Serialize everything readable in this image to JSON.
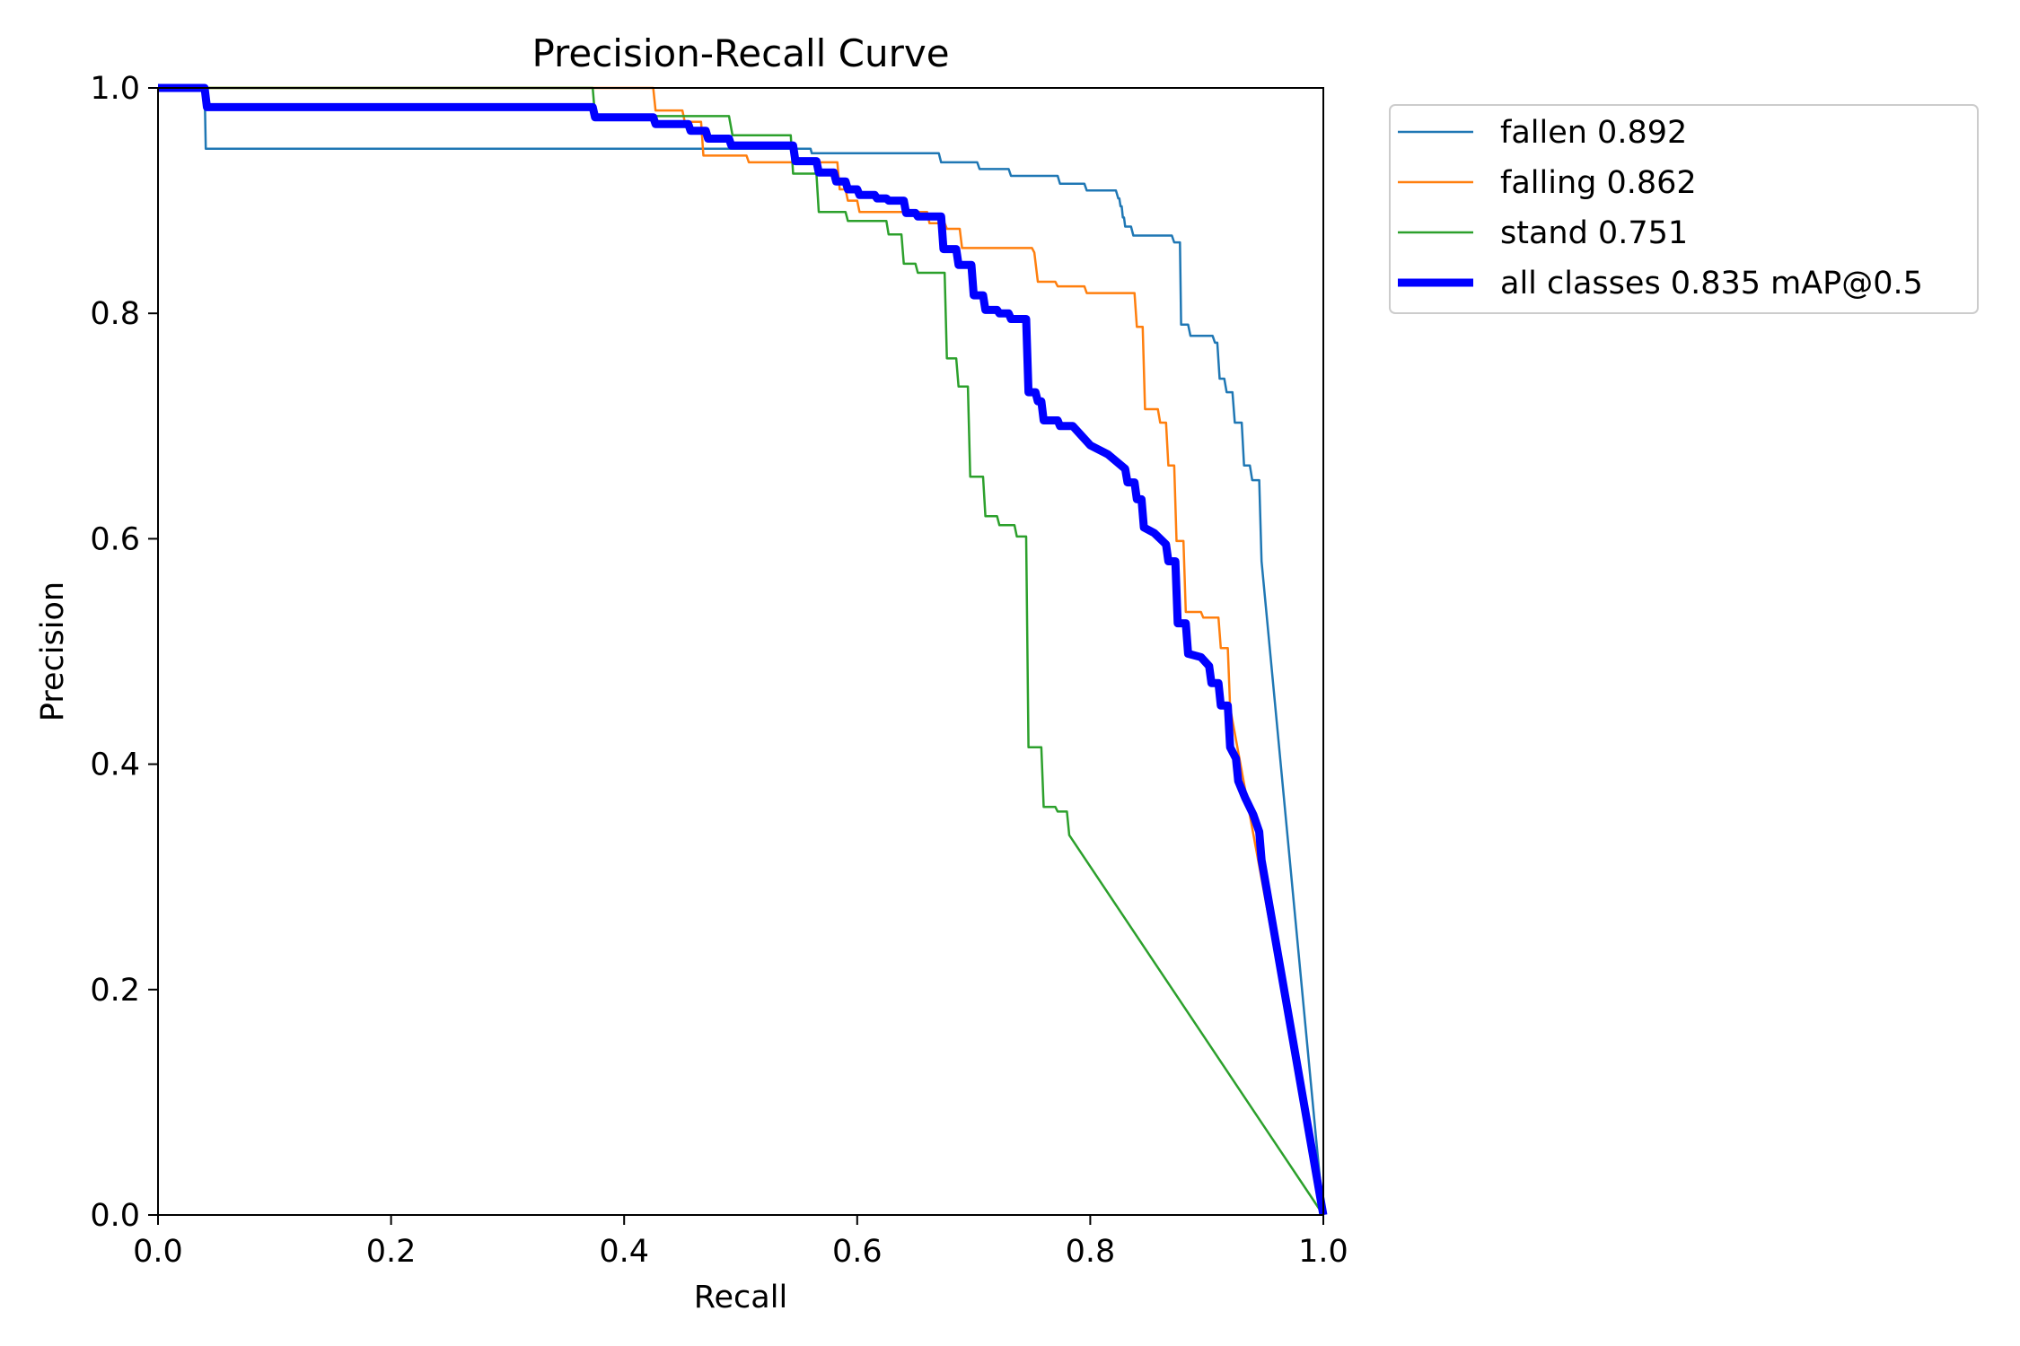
{
  "chart_data": {
    "type": "line",
    "title": "Precision-Recall Curve",
    "xlabel": "Recall",
    "ylabel": "Precision",
    "xlim": [
      0,
      1
    ],
    "ylim": [
      0,
      1
    ],
    "xticks": [
      "0.0",
      "0.2",
      "0.4",
      "0.6",
      "0.8",
      "1.0"
    ],
    "yticks": [
      "0.0",
      "0.2",
      "0.4",
      "0.6",
      "0.8",
      "1.0"
    ],
    "grid": false,
    "legend_position": "outside-top-right",
    "series": [
      {
        "name": "fallen 0.892",
        "color": "#1f77b4",
        "weight": "thin",
        "points": [
          [
            0,
            1
          ],
          [
            0.04,
            1
          ],
          [
            0.041,
            0.946
          ],
          [
            0.56,
            0.946
          ],
          [
            0.561,
            0.942
          ],
          [
            0.67,
            0.942
          ],
          [
            0.672,
            0.934
          ],
          [
            0.703,
            0.934
          ],
          [
            0.705,
            0.928
          ],
          [
            0.73,
            0.928
          ],
          [
            0.732,
            0.922
          ],
          [
            0.772,
            0.922
          ],
          [
            0.774,
            0.915
          ],
          [
            0.795,
            0.915
          ],
          [
            0.797,
            0.909
          ],
          [
            0.822,
            0.909
          ],
          [
            0.824,
            0.902
          ],
          [
            0.825,
            0.902
          ],
          [
            0.826,
            0.895
          ],
          [
            0.827,
            0.895
          ],
          [
            0.828,
            0.885
          ],
          [
            0.829,
            0.885
          ],
          [
            0.83,
            0.877
          ],
          [
            0.835,
            0.877
          ],
          [
            0.837,
            0.869
          ],
          [
            0.87,
            0.869
          ],
          [
            0.872,
            0.863
          ],
          [
            0.877,
            0.863
          ],
          [
            0.878,
            0.79
          ],
          [
            0.884,
            0.79
          ],
          [
            0.886,
            0.78
          ],
          [
            0.905,
            0.78
          ],
          [
            0.907,
            0.774
          ],
          [
            0.909,
            0.774
          ],
          [
            0.911,
            0.742
          ],
          [
            0.915,
            0.742
          ],
          [
            0.917,
            0.73
          ],
          [
            0.922,
            0.73
          ],
          [
            0.924,
            0.703
          ],
          [
            0.93,
            0.703
          ],
          [
            0.932,
            0.665
          ],
          [
            0.937,
            0.665
          ],
          [
            0.939,
            0.652
          ],
          [
            0.945,
            0.652
          ],
          [
            0.947,
            0.58
          ],
          [
            1.0,
            0.0
          ]
        ]
      },
      {
        "name": "falling 0.862",
        "color": "#ff7f0e",
        "weight": "thin",
        "points": [
          [
            0,
            1
          ],
          [
            0.425,
            1
          ],
          [
            0.427,
            0.98
          ],
          [
            0.45,
            0.98
          ],
          [
            0.452,
            0.97
          ],
          [
            0.466,
            0.97
          ],
          [
            0.468,
            0.94
          ],
          [
            0.505,
            0.94
          ],
          [
            0.507,
            0.934
          ],
          [
            0.583,
            0.934
          ],
          [
            0.585,
            0.91
          ],
          [
            0.59,
            0.91
          ],
          [
            0.592,
            0.9
          ],
          [
            0.6,
            0.9
          ],
          [
            0.602,
            0.89
          ],
          [
            0.66,
            0.89
          ],
          [
            0.662,
            0.88
          ],
          [
            0.675,
            0.88
          ],
          [
            0.677,
            0.875
          ],
          [
            0.688,
            0.875
          ],
          [
            0.69,
            0.858
          ],
          [
            0.75,
            0.858
          ],
          [
            0.752,
            0.854
          ],
          [
            0.755,
            0.828
          ],
          [
            0.77,
            0.828
          ],
          [
            0.772,
            0.824
          ],
          [
            0.795,
            0.824
          ],
          [
            0.797,
            0.818
          ],
          [
            0.838,
            0.818
          ],
          [
            0.84,
            0.788
          ],
          [
            0.845,
            0.788
          ],
          [
            0.847,
            0.715
          ],
          [
            0.858,
            0.715
          ],
          [
            0.86,
            0.703
          ],
          [
            0.865,
            0.703
          ],
          [
            0.867,
            0.665
          ],
          [
            0.872,
            0.665
          ],
          [
            0.874,
            0.598
          ],
          [
            0.88,
            0.598
          ],
          [
            0.882,
            0.535
          ],
          [
            0.895,
            0.535
          ],
          [
            0.897,
            0.53
          ],
          [
            0.91,
            0.53
          ],
          [
            0.912,
            0.503
          ],
          [
            0.918,
            0.503
          ],
          [
            0.92,
            0.45
          ],
          [
            1.0,
            0.0
          ]
        ]
      },
      {
        "name": "stand 0.751",
        "color": "#2ca02c",
        "weight": "thin",
        "points": [
          [
            0,
            1
          ],
          [
            0.373,
            1
          ],
          [
            0.375,
            0.975
          ],
          [
            0.49,
            0.975
          ],
          [
            0.493,
            0.958
          ],
          [
            0.543,
            0.958
          ],
          [
            0.545,
            0.924
          ],
          [
            0.565,
            0.924
          ],
          [
            0.567,
            0.89
          ],
          [
            0.59,
            0.89
          ],
          [
            0.592,
            0.882
          ],
          [
            0.625,
            0.882
          ],
          [
            0.627,
            0.87
          ],
          [
            0.638,
            0.87
          ],
          [
            0.64,
            0.844
          ],
          [
            0.65,
            0.844
          ],
          [
            0.652,
            0.836
          ],
          [
            0.675,
            0.836
          ],
          [
            0.677,
            0.76
          ],
          [
            0.685,
            0.76
          ],
          [
            0.687,
            0.735
          ],
          [
            0.695,
            0.735
          ],
          [
            0.697,
            0.655
          ],
          [
            0.708,
            0.655
          ],
          [
            0.71,
            0.62
          ],
          [
            0.72,
            0.62
          ],
          [
            0.722,
            0.612
          ],
          [
            0.735,
            0.612
          ],
          [
            0.737,
            0.602
          ],
          [
            0.745,
            0.602
          ],
          [
            0.747,
            0.415
          ],
          [
            0.758,
            0.415
          ],
          [
            0.76,
            0.362
          ],
          [
            0.77,
            0.362
          ],
          [
            0.772,
            0.358
          ],
          [
            0.78,
            0.358
          ],
          [
            0.782,
            0.337
          ],
          [
            1.0,
            0.0
          ]
        ]
      },
      {
        "name": "all classes 0.835 mAP@0.5",
        "color": "#0000ff",
        "weight": "thick",
        "points": [
          [
            0,
            1
          ],
          [
            0.04,
            1
          ],
          [
            0.042,
            0.983
          ],
          [
            0.373,
            0.983
          ],
          [
            0.375,
            0.974
          ],
          [
            0.425,
            0.974
          ],
          [
            0.427,
            0.968
          ],
          [
            0.455,
            0.968
          ],
          [
            0.457,
            0.962
          ],
          [
            0.47,
            0.962
          ],
          [
            0.472,
            0.955
          ],
          [
            0.49,
            0.955
          ],
          [
            0.492,
            0.949
          ],
          [
            0.545,
            0.949
          ],
          [
            0.547,
            0.935
          ],
          [
            0.565,
            0.935
          ],
          [
            0.567,
            0.925
          ],
          [
            0.58,
            0.925
          ],
          [
            0.582,
            0.917
          ],
          [
            0.59,
            0.917
          ],
          [
            0.592,
            0.91
          ],
          [
            0.6,
            0.91
          ],
          [
            0.602,
            0.905
          ],
          [
            0.615,
            0.905
          ],
          [
            0.617,
            0.902
          ],
          [
            0.625,
            0.902
          ],
          [
            0.627,
            0.9
          ],
          [
            0.64,
            0.9
          ],
          [
            0.642,
            0.889
          ],
          [
            0.65,
            0.889
          ],
          [
            0.652,
            0.886
          ],
          [
            0.672,
            0.886
          ],
          [
            0.674,
            0.857
          ],
          [
            0.685,
            0.857
          ],
          [
            0.687,
            0.843
          ],
          [
            0.698,
            0.843
          ],
          [
            0.7,
            0.816
          ],
          [
            0.708,
            0.816
          ],
          [
            0.71,
            0.803
          ],
          [
            0.72,
            0.803
          ],
          [
            0.722,
            0.8
          ],
          [
            0.73,
            0.8
          ],
          [
            0.732,
            0.795
          ],
          [
            0.745,
            0.795
          ],
          [
            0.747,
            0.73
          ],
          [
            0.753,
            0.73
          ],
          [
            0.755,
            0.722
          ],
          [
            0.758,
            0.722
          ],
          [
            0.76,
            0.705
          ],
          [
            0.772,
            0.705
          ],
          [
            0.774,
            0.7
          ],
          [
            0.785,
            0.7
          ],
          [
            0.8,
            0.683
          ],
          [
            0.815,
            0.675
          ],
          [
            0.83,
            0.662
          ],
          [
            0.832,
            0.65
          ],
          [
            0.838,
            0.65
          ],
          [
            0.84,
            0.635
          ],
          [
            0.844,
            0.635
          ],
          [
            0.846,
            0.61
          ],
          [
            0.855,
            0.605
          ],
          [
            0.865,
            0.595
          ],
          [
            0.867,
            0.58
          ],
          [
            0.873,
            0.58
          ],
          [
            0.875,
            0.525
          ],
          [
            0.882,
            0.525
          ],
          [
            0.884,
            0.498
          ],
          [
            0.895,
            0.495
          ],
          [
            0.902,
            0.487
          ],
          [
            0.904,
            0.472
          ],
          [
            0.91,
            0.472
          ],
          [
            0.912,
            0.452
          ],
          [
            0.918,
            0.452
          ],
          [
            0.92,
            0.415
          ],
          [
            0.925,
            0.405
          ],
          [
            0.927,
            0.385
          ],
          [
            0.933,
            0.37
          ],
          [
            0.94,
            0.355
          ],
          [
            0.945,
            0.34
          ],
          [
            0.947,
            0.315
          ],
          [
            1.0,
            0.0
          ]
        ]
      }
    ]
  }
}
